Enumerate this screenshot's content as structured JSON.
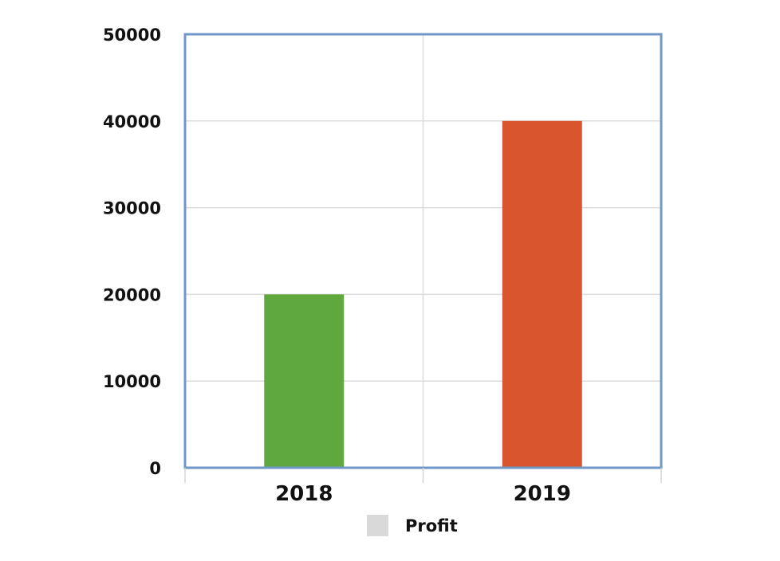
{
  "chart_data": {
    "type": "bar",
    "categories": [
      "2018",
      "2019"
    ],
    "series": [
      {
        "name": "Profit",
        "values": [
          20000,
          40000
        ]
      }
    ],
    "bar_colors": [
      "#5fa83e",
      "#d9552d"
    ],
    "legend_swatch_color": "#d9d9d9",
    "plot_border_color": "#6f98c8",
    "ylim": [
      0,
      50000
    ],
    "yticks": [
      0,
      10000,
      20000,
      30000,
      40000,
      50000
    ],
    "ytick_labels": [
      "0",
      "10000",
      "20000",
      "30000",
      "40000",
      "50000"
    ],
    "grid": true,
    "legend_position": "bottom"
  }
}
